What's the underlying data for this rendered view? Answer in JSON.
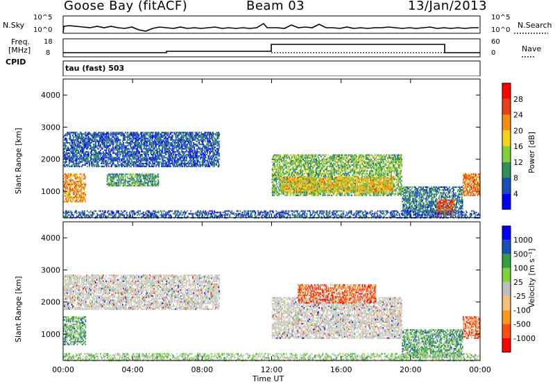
{
  "header": {
    "station": "Goose Bay (fitACF)",
    "beam": "Beam 03",
    "date": "13/Jan/2013"
  },
  "top_panels": {
    "nsky_label": "N.Sky",
    "nsky_ticks": [
      "10^5",
      "10^0"
    ],
    "nsearch_label": "N.Search",
    "nsearch_ticks": [
      "10^5",
      "10^0"
    ],
    "freq_label": "Freq.",
    "freq_unit": "[MHz]",
    "freq_ticks": [
      "18",
      "8"
    ],
    "nave_label": "Nave",
    "nave_ticks": [
      "60",
      "0"
    ],
    "cpid_label": "CPID",
    "cpid_text": "tau (fast) 503"
  },
  "colors": {
    "power_scale": [
      "#0000ff",
      "#1a4fb4",
      "#2f8f5a",
      "#7fcf3a",
      "#f2d21b",
      "#f28f14",
      "#e6411b",
      "#ff0000"
    ],
    "velocity_scale": [
      "#ff0000",
      "#ff4f10",
      "#ff9a1a",
      "#f7c07a",
      "#bdbdbd",
      "#7fd23a",
      "#2fa040",
      "#1a4fb4",
      "#0000ff"
    ],
    "scatter_grey": "#c8c8c0"
  },
  "chart_data": [
    {
      "type": "heatmap",
      "panel": "power",
      "ylabel": "Slant Range [km]",
      "xlabel": "Time UT",
      "x_ticks": [
        "00:00",
        "04:00",
        "08:00",
        "12:00",
        "16:00",
        "20:00",
        "00:00"
      ],
      "y_ticks": [
        "1000",
        "2000",
        "3000",
        "4000"
      ],
      "ylim": [
        180,
        4500
      ],
      "colorbar_label": "Power [dB]",
      "colorbar_ticks": [
        "4",
        "8",
        "12",
        "16",
        "20",
        "24",
        "28"
      ],
      "regions": [
        {
          "t0": 0.0,
          "t1": 1.3,
          "r0": 700,
          "r1": 1600,
          "level": 22
        },
        {
          "t0": 0.0,
          "t1": 9.0,
          "r0": 1800,
          "r1": 2900,
          "level": 8
        },
        {
          "t0": 2.5,
          "t1": 5.5,
          "r0": 1200,
          "r1": 1600,
          "level": 12
        },
        {
          "t0": 12.0,
          "t1": 19.5,
          "r0": 900,
          "r1": 2200,
          "level": 14
        },
        {
          "t0": 12.5,
          "t1": 19.0,
          "r0": 1000,
          "r1": 1500,
          "level": 20
        },
        {
          "t0": 19.5,
          "t1": 23.0,
          "r0": 300,
          "r1": 1200,
          "level": 10
        },
        {
          "t0": 21.5,
          "t1": 22.5,
          "r0": 300,
          "r1": 800,
          "level": 26
        },
        {
          "t0": 23.0,
          "t1": 24.0,
          "r0": 900,
          "r1": 1600,
          "level": 24
        },
        {
          "t0": 0.0,
          "t1": 24.0,
          "r0": 200,
          "r1": 450,
          "level": 8
        }
      ]
    },
    {
      "type": "heatmap",
      "panel": "velocity",
      "ylabel": "Slant Range [km]",
      "xlabel": "Time UT",
      "x_ticks": [
        "00:00",
        "04:00",
        "08:00",
        "12:00",
        "16:00",
        "20:00",
        "00:00"
      ],
      "y_ticks": [
        "1000",
        "2000",
        "3000",
        "4000"
      ],
      "ylim": [
        180,
        4500
      ],
      "colorbar_label": "Velocity [m s⁻¹]",
      "colorbar_ticks": [
        "1000",
        "500",
        "100",
        "25",
        "-25",
        "-100",
        "-500",
        "-1000"
      ],
      "regions": [
        {
          "t0": 0.0,
          "t1": 1.3,
          "r0": 700,
          "r1": 1600,
          "level": 100
        },
        {
          "t0": 0.0,
          "t1": 9.0,
          "r0": 1800,
          "r1": 2900,
          "level": 0
        },
        {
          "t0": 12.0,
          "t1": 19.5,
          "r0": 900,
          "r1": 2200,
          "level": 0
        },
        {
          "t0": 13.5,
          "t1": 18.0,
          "r0": 2000,
          "r1": 2600,
          "level": -500
        },
        {
          "t0": 19.5,
          "t1": 23.0,
          "r0": 300,
          "r1": 1200,
          "level": 100
        },
        {
          "t0": 23.0,
          "t1": 24.0,
          "r0": 900,
          "r1": 1600,
          "level": -500
        },
        {
          "t0": 0.0,
          "t1": 24.0,
          "r0": 200,
          "r1": 450,
          "level": 25
        }
      ]
    }
  ]
}
